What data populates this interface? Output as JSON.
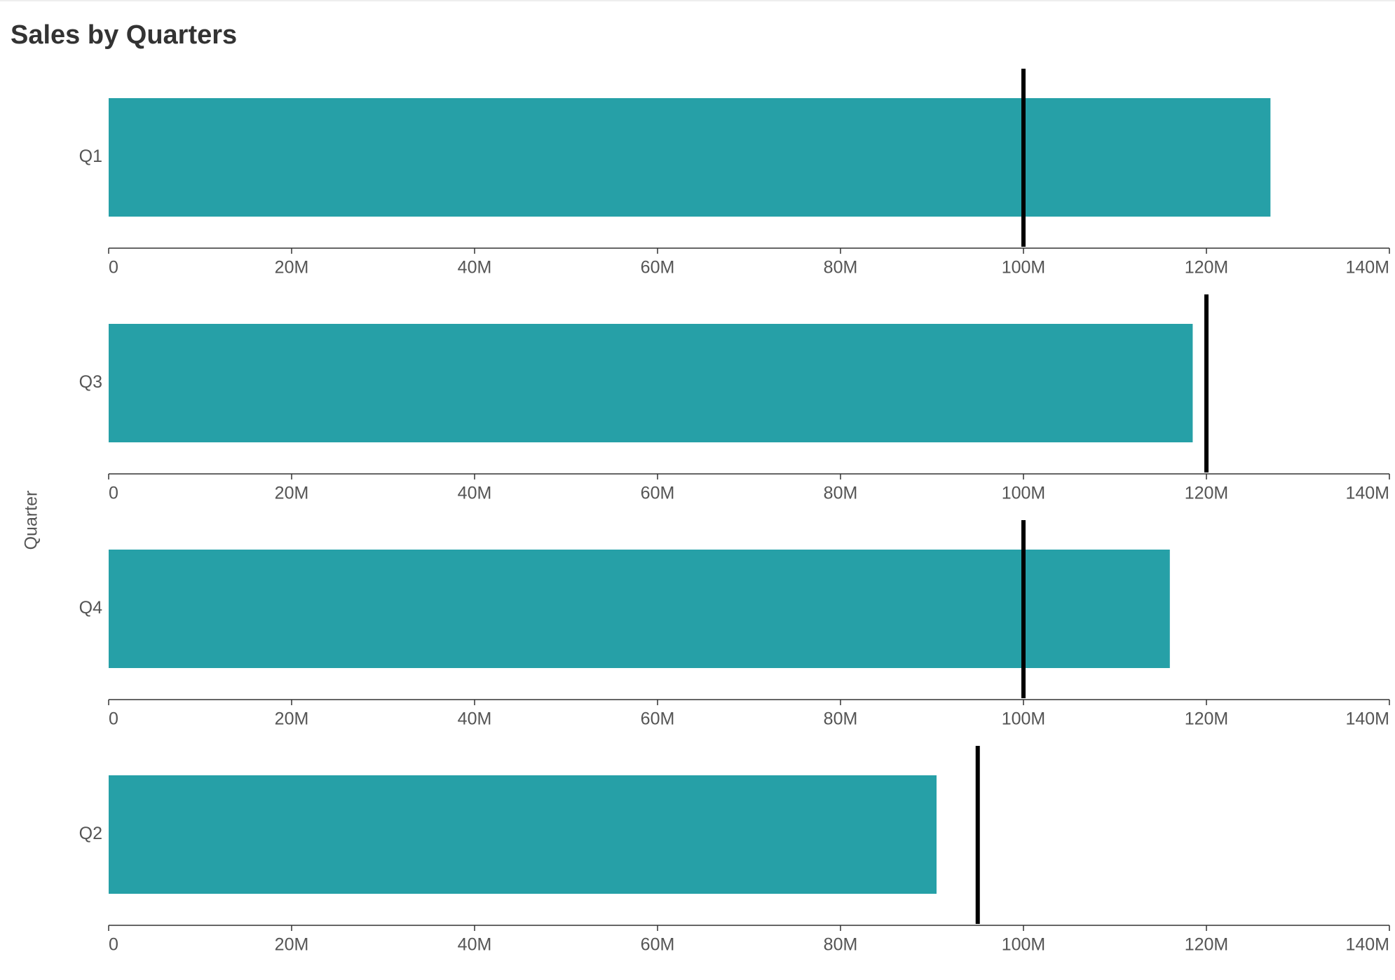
{
  "chart_data": {
    "type": "bullet",
    "title": "Sales by Quarters",
    "y_label": "Quarter",
    "categories": [
      "Q1",
      "Q3",
      "Q4",
      "Q2"
    ],
    "values": [
      127000000,
      118500000,
      116000000,
      90500000
    ],
    "targets": [
      100000000,
      120000000,
      100000000,
      95000000
    ],
    "color": "#26a0a7",
    "target_color": "#000000",
    "xlim": [
      0,
      140000000
    ],
    "xticks": [
      0,
      {
        "value": 20000000,
        "label": "20M"
      },
      {
        "value": 40000000,
        "label": "40M"
      },
      {
        "value": 60000000,
        "label": "60M"
      },
      {
        "value": 80000000,
        "label": "80M"
      },
      {
        "value": 100000000,
        "label": "100M"
      },
      {
        "value": 120000000,
        "label": "120M"
      },
      {
        "value": 140000000,
        "label": "140M"
      }
    ]
  }
}
